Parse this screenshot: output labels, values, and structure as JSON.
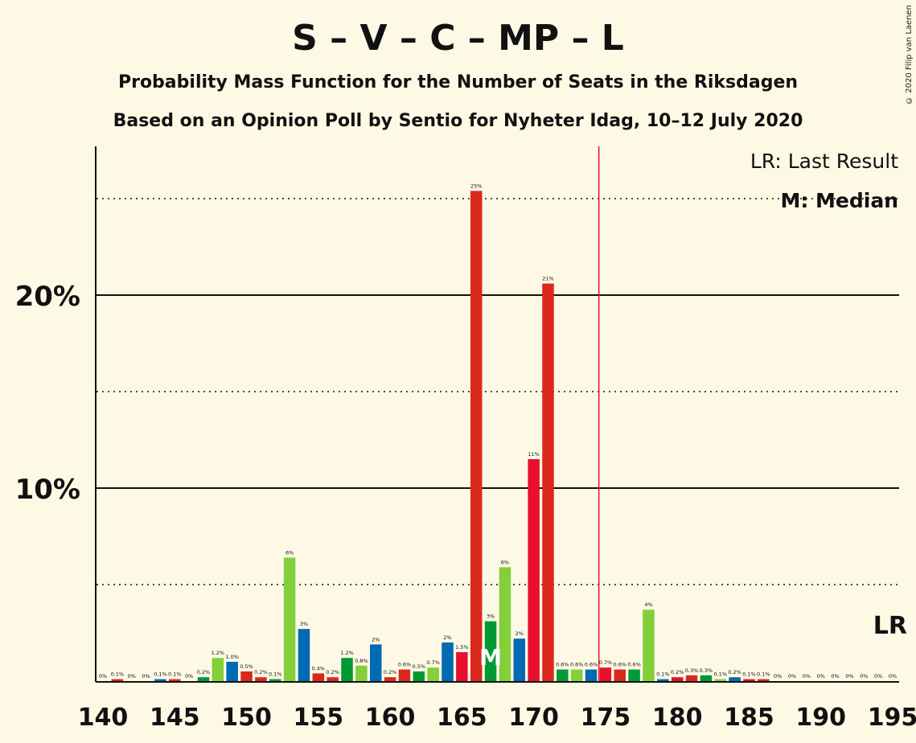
{
  "title": "S – V – C – MP – L",
  "subtitle": "Probability Mass Function for the Number of Seats in the Riksdagen",
  "subtitle2": "Based on an Opinion Poll by Sentio for Nyheter Idag, 10–12 July 2020",
  "copyright": "© 2020 Filip van Laenen",
  "legend": {
    "last_result": "LR: Last Result",
    "median": "M: Median"
  },
  "markers": {
    "median_label": "M",
    "last_result_label": "LR"
  },
  "colors": {
    "background": "#fdf9e5",
    "S": "#e8112d",
    "V": "#da291c",
    "C": "#009933",
    "MP": "#83cf39",
    "L": "#006ab3",
    "last_result_line": "#e8112d"
  },
  "chart_data": {
    "type": "bar",
    "x": [
      140,
      141,
      142,
      143,
      144,
      145,
      146,
      147,
      148,
      149,
      150,
      151,
      152,
      153,
      154,
      155,
      156,
      157,
      158,
      159,
      160,
      161,
      162,
      163,
      164,
      165,
      166,
      167,
      168,
      169,
      170,
      171,
      172,
      173,
      174,
      175,
      176,
      177,
      178,
      179,
      180,
      181,
      182,
      183,
      184,
      185,
      186,
      187,
      188,
      189,
      190,
      191,
      192,
      193,
      194,
      195
    ],
    "values": [
      0,
      0.1,
      0,
      0,
      0.1,
      0.1,
      0,
      0.2,
      1.2,
      1.0,
      0.5,
      0.2,
      0.1,
      6.4,
      2.7,
      0.4,
      0.2,
      1.2,
      0.8,
      1.9,
      0.2,
      0.6,
      0.5,
      0.7,
      2.0,
      1.5,
      25.4,
      3.1,
      5.9,
      2.2,
      11.5,
      20.6,
      0.6,
      0.6,
      0.6,
      0.7,
      0.6,
      0.6,
      3.7,
      0.1,
      0.2,
      0.3,
      0.3,
      0.1,
      0.2,
      0.1,
      0.1,
      0,
      0,
      0,
      0,
      0,
      0,
      0,
      0,
      0
    ],
    "data_labels": [
      "0%",
      "0.1%",
      "0%",
      "0%",
      "0.1%",
      "0.1%",
      "0%",
      "0.2%",
      "1.2%",
      "1.0%",
      "0.5%",
      "0.2%",
      "0.1%",
      "6%",
      "3%",
      "0.4%",
      "0.2%",
      "1.2%",
      "0.8%",
      "2%",
      "0.2%",
      "0.6%",
      "0.5%",
      "0.7%",
      "2%",
      "1.5%",
      "25%",
      "3%",
      "6%",
      "2%",
      "11%",
      "21%",
      "0.6%",
      "0.6%",
      "0.6%",
      "0.7%",
      "0.6%",
      "0.6%",
      "4%",
      "0.1%",
      "0.2%",
      "0.3%",
      "0.3%",
      "0.1%",
      "0.2%",
      "0.1%",
      "0.1%",
      "0%",
      "0%",
      "0%",
      "0%",
      "0%",
      "0%",
      "0%",
      "0%",
      "0%"
    ],
    "bar_colors": [
      "#006ab3",
      "#da291c",
      "#006ab3",
      "#009933",
      "#006ab3",
      "#da291c",
      "#006ab3",
      "#009933",
      "#83cf39",
      "#006ab3",
      "#da291c",
      "#da291c",
      "#009933",
      "#83cf39",
      "#006ab3",
      "#da291c",
      "#da291c",
      "#009933",
      "#83cf39",
      "#006ab3",
      "#da291c",
      "#da291c",
      "#009933",
      "#83cf39",
      "#006ab3",
      "#e8112d",
      "#da291c",
      "#009933",
      "#83cf39",
      "#006ab3",
      "#e8112d",
      "#da291c",
      "#009933",
      "#83cf39",
      "#006ab3",
      "#e8112d",
      "#da291c",
      "#009933",
      "#83cf39",
      "#006ab3",
      "#e8112d",
      "#da291c",
      "#009933",
      "#83cf39",
      "#006ab3",
      "#e8112d",
      "#da291c",
      "#009933",
      "#83cf39",
      "#006ab3",
      "#e8112d",
      "#da291c",
      "#009933",
      "#83cf39",
      "#006ab3",
      "#e8112d"
    ],
    "xlim": [
      140,
      195
    ],
    "ylim": [
      0,
      27.7
    ],
    "x_ticks": [
      140,
      145,
      150,
      155,
      160,
      165,
      170,
      175,
      180,
      185,
      190,
      195
    ],
    "y_ticks_major": [
      10,
      20
    ],
    "y_tick_labels": [
      "10%",
      "20%"
    ],
    "y_gridlines_minor": [
      5,
      15,
      25
    ],
    "median": 167,
    "last_result": 175
  }
}
